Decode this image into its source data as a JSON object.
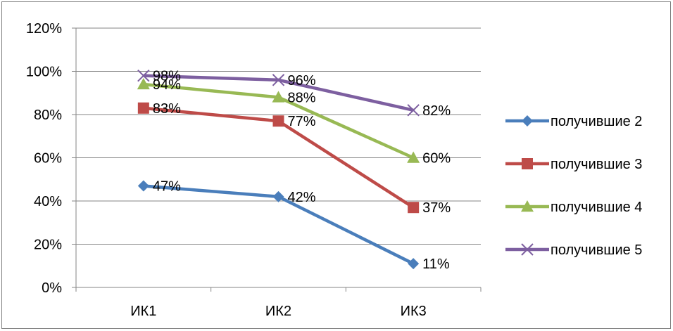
{
  "chart_data": {
    "type": "line",
    "title": "",
    "xlabel": "",
    "ylabel": "",
    "categories": [
      "ИК1",
      "ИК2",
      "ИК3"
    ],
    "ylim": [
      0,
      120
    ],
    "y_tick_labels": [
      "0%",
      "20%",
      "40%",
      "60%",
      "80%",
      "100%",
      "120%"
    ],
    "grid": true,
    "legend_position": "right",
    "series": [
      {
        "name": "получившие 2",
        "values": [
          47,
          42,
          11
        ],
        "labels": [
          "47%",
          "42%",
          "11%"
        ],
        "color": "#4a7ebb",
        "marker": "diamond"
      },
      {
        "name": "получившие 3",
        "values": [
          83,
          77,
          37
        ],
        "labels": [
          "83%",
          "77%",
          "37%"
        ],
        "color": "#be4b48",
        "marker": "square"
      },
      {
        "name": "получившие 4",
        "values": [
          94,
          88,
          60
        ],
        "labels": [
          "94%",
          "88%",
          "60%"
        ],
        "color": "#98b954",
        "marker": "triangle"
      },
      {
        "name": "получившие 5",
        "values": [
          98,
          96,
          82
        ],
        "labels": [
          "98%",
          "96%",
          "82%"
        ],
        "color": "#7d5fa0",
        "marker": "x"
      }
    ]
  }
}
